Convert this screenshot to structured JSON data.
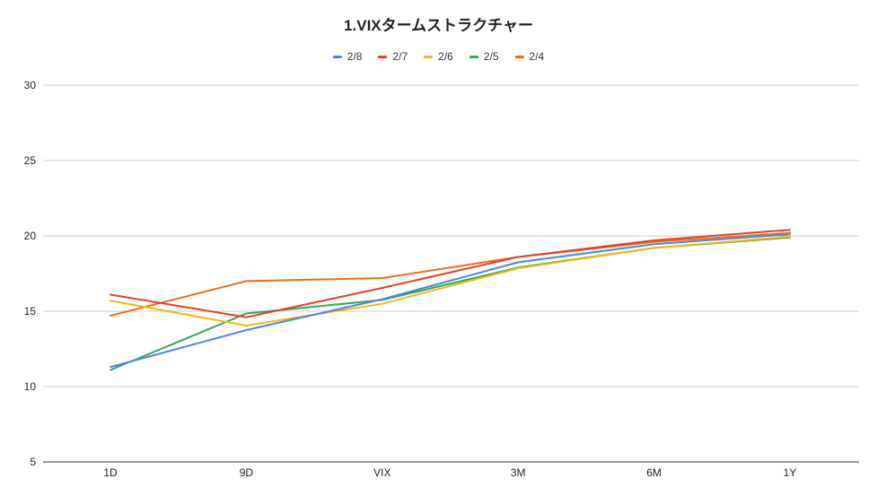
{
  "chart_data": {
    "type": "line",
    "title": "1.VIXタームストラクチャー",
    "xlabel": "",
    "ylabel": "",
    "categories": [
      "1D",
      "9D",
      "VIX",
      "3M",
      "6M",
      "1Y"
    ],
    "ylim": [
      5,
      30
    ],
    "yticks": [
      5,
      10,
      15,
      20,
      25,
      30
    ],
    "grid": true,
    "legend_position": "top",
    "series": [
      {
        "name": "2/8",
        "color": "#4a86e8",
        "values": [
          11.3,
          13.75,
          15.8,
          18.25,
          19.45,
          20.1
        ]
      },
      {
        "name": "2/7",
        "color": "#e0412f",
        "values": [
          16.1,
          14.6,
          16.55,
          18.6,
          19.7,
          20.4
        ]
      },
      {
        "name": "2/6",
        "color": "#f4b914",
        "values": [
          15.7,
          14.05,
          15.5,
          17.85,
          19.2,
          19.95
        ]
      },
      {
        "name": "2/5",
        "color": "#34a853",
        "values": [
          11.1,
          14.85,
          15.75,
          17.9,
          19.2,
          19.9
        ]
      },
      {
        "name": "2/4",
        "color": "#f06d10",
        "values": [
          14.7,
          17.0,
          17.2,
          18.6,
          19.6,
          20.2
        ]
      }
    ]
  }
}
